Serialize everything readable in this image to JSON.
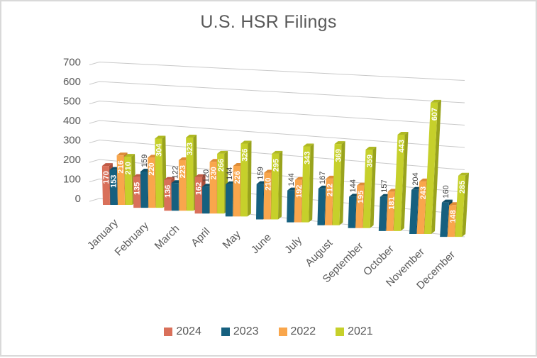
{
  "title": "U.S. HSR Filings",
  "chart_data": {
    "type": "bar",
    "subtype": "3d-clustered-column",
    "title": "U.S. HSR Filings",
    "categories": [
      "January",
      "February",
      "March",
      "April",
      "May",
      "June",
      "July",
      "August",
      "September",
      "October",
      "November",
      "December"
    ],
    "series": [
      {
        "name": "2024",
        "color": "#D9705A",
        "top_color": "#C05A45",
        "side_color": "#A84E3B",
        "label_placement": "outside",
        "values": [
          170,
          135,
          136,
          162,
          null,
          null,
          null,
          null,
          null,
          null,
          null,
          null
        ]
      },
      {
        "name": "2023",
        "color": "#16607F",
        "top_color": "#114F69",
        "side_color": "#0E4156",
        "label_placement": "outside",
        "label_placement_exceptions": {
          "January": "inside"
        },
        "values": [
          153,
          159,
          122,
          120,
          144,
          159,
          144,
          167,
          144,
          157,
          204,
          160
        ]
      },
      {
        "name": "2022",
        "color": "#F9A64C",
        "top_color": "#DE8C37",
        "side_color": "#C2782E",
        "label_placement": "inside",
        "values": [
          216,
          220,
          223,
          230,
          226,
          210,
          192,
          212,
          195,
          181,
          243,
          148
        ]
      },
      {
        "name": "2021",
        "color": "#C6D02B",
        "top_color": "#AFB922",
        "side_color": "#99A31D",
        "label_placement": "inside",
        "values": [
          210,
          304,
          323,
          266,
          326,
          295,
          343,
          369,
          359,
          443,
          607,
          285
        ]
      }
    ],
    "y_axis": {
      "min": 0,
      "max": 700,
      "step": 100,
      "tick_labels": [
        "0",
        "100",
        "200",
        "300",
        "400",
        "500",
        "600",
        "700"
      ]
    },
    "legend": {
      "position": "bottom",
      "entries": [
        "2024",
        "2023",
        "2022",
        "2021"
      ]
    },
    "grid": true,
    "axis_text_color": "#595959",
    "value_label_colors": {
      "inside": "#FFFFFF",
      "outside": "#404040"
    }
  }
}
